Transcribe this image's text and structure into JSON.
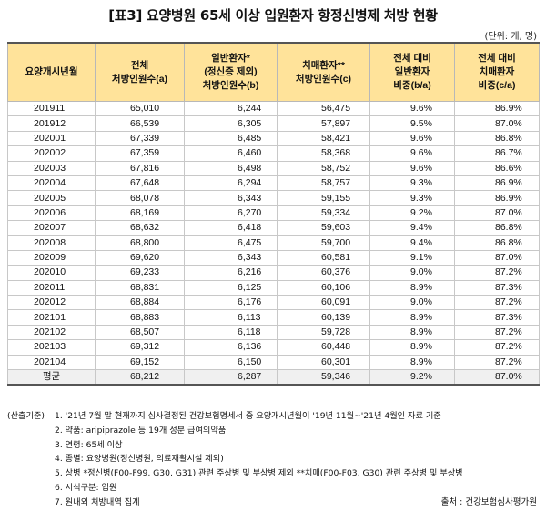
{
  "title": "[표3] 요양병원 65세 이상 입원환자 항정신병제 처방 현황",
  "unit": "(단위: 개, 명)",
  "table": {
    "headers": [
      [
        "요양개시년월"
      ],
      [
        "전체",
        "처방인원수(a)"
      ],
      [
        "일반환자*",
        "(정신증 제외)",
        "처방인원수(b)"
      ],
      [
        "치매환자**",
        "처방인원수(c)"
      ],
      [
        "전체 대비",
        "일반환자",
        "비중(b/a)"
      ],
      [
        "전체 대비",
        "치매환자",
        "비중(c/a)"
      ]
    ],
    "rows": [
      [
        "201911",
        "65,010",
        "6,244",
        "56,475",
        "9.6%",
        "86.9%"
      ],
      [
        "201912",
        "66,539",
        "6,305",
        "57,897",
        "9.5%",
        "87.0%"
      ],
      [
        "202001",
        "67,339",
        "6,485",
        "58,421",
        "9.6%",
        "86.8%"
      ],
      [
        "202002",
        "67,359",
        "6,460",
        "58,368",
        "9.6%",
        "86.7%"
      ],
      [
        "202003",
        "67,816",
        "6,498",
        "58,752",
        "9.6%",
        "86.6%"
      ],
      [
        "202004",
        "67,648",
        "6,294",
        "58,757",
        "9.3%",
        "86.9%"
      ],
      [
        "202005",
        "68,078",
        "6,343",
        "59,155",
        "9.3%",
        "86.9%"
      ],
      [
        "202006",
        "68,169",
        "6,270",
        "59,334",
        "9.2%",
        "87.0%"
      ],
      [
        "202007",
        "68,632",
        "6,418",
        "59,603",
        "9.4%",
        "86.8%"
      ],
      [
        "202008",
        "68,800",
        "6,475",
        "59,700",
        "9.4%",
        "86.8%"
      ],
      [
        "202009",
        "69,620",
        "6,343",
        "60,581",
        "9.1%",
        "87.0%"
      ],
      [
        "202010",
        "69,233",
        "6,216",
        "60,376",
        "9.0%",
        "87.2%"
      ],
      [
        "202011",
        "68,831",
        "6,125",
        "60,106",
        "8.9%",
        "87.3%"
      ],
      [
        "202012",
        "68,884",
        "6,176",
        "60,091",
        "9.0%",
        "87.2%"
      ],
      [
        "202101",
        "68,883",
        "6,113",
        "60,139",
        "8.9%",
        "87.3%"
      ],
      [
        "202102",
        "68,507",
        "6,118",
        "59,728",
        "8.9%",
        "87.2%"
      ],
      [
        "202103",
        "69,312",
        "6,136",
        "60,448",
        "8.9%",
        "87.2%"
      ],
      [
        "202104",
        "69,152",
        "6,150",
        "60,301",
        "8.9%",
        "87.2%"
      ]
    ],
    "average": [
      "평균",
      "68,212",
      "6,287",
      "59,346",
      "9.2%",
      "87.0%"
    ]
  },
  "notes": {
    "prefix": "(산출기준)",
    "items": [
      "1. '21년 7월 말 현재까지 심사결정된 건강보험명세서 중 요양개시년월이 '19년 11월~'21년 4월인 자료 기준",
      "2. 약품: aripiprazole 등 19개 성분 급여의약품",
      "3. 연령: 65세 이상",
      "4. 종별: 요양병원(정신병원, 의료재활시설 제외)",
      "5. 상병 *정신병(F00-F99, G30, G31) 관련 주상병 및 부상병 제외 **치매(F00-F03, G30) 관련 주상병 및 부상병",
      "6. 서식구분: 입원",
      "7. 원내외 처방내역 집계"
    ]
  },
  "source": "출처 : 건강보험심사평가원"
}
